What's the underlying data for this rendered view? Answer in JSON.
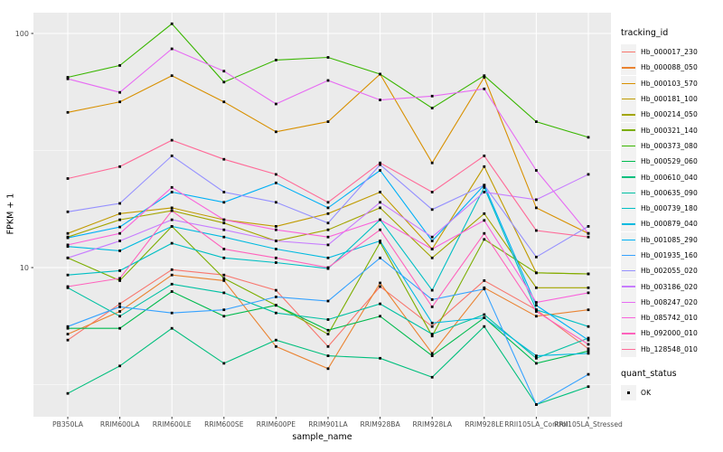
{
  "chart_data": {
    "type": "line",
    "title": "",
    "xlabel": "sample_name",
    "ylabel": "FPKM + 1",
    "y_scale": "log10",
    "ylim": [
      2.2,
      123
    ],
    "y_major_ticks": [
      10,
      100
    ],
    "y_minor_ticks": [
      3.162,
      31.62
    ],
    "grid": "on",
    "panel_bg": "#EBEBEB",
    "grid_color": "#FFFFFF",
    "point_marker": "black-square",
    "point_color": "#000000",
    "legend_position": "right",
    "legend_title": "tracking_id",
    "categories": [
      "PB350LA",
      "RRIM600LA",
      "RRIM600LE",
      "RRIM600SE",
      "RRIM600PE",
      "RRIM901LA",
      "RRIM928BA",
      "RRIM928LA",
      "RRIM928LE",
      "RRII105LA_Control",
      "RRII105LA_Stressed"
    ],
    "series": [
      {
        "name": "Hb_000017_230",
        "color": "#F8766D",
        "values": [
          4.9,
          7.0,
          9.8,
          9.3,
          8.0,
          4.6,
          8.3,
          5.6,
          8.8,
          6.6,
          4.5
        ]
      },
      {
        "name": "Hb_000088_050",
        "color": "#EA8331",
        "values": [
          5.2,
          6.5,
          9.3,
          8.8,
          4.6,
          3.7,
          8.6,
          4.3,
          8.2,
          6.2,
          6.6
        ]
      },
      {
        "name": "Hb_000103_570",
        "color": "#D89000",
        "values": [
          46,
          51,
          66,
          51,
          38,
          42,
          67,
          28,
          65,
          18,
          14
        ]
      },
      {
        "name": "Hb_000181_100",
        "color": "#C09B00",
        "values": [
          14,
          17,
          18,
          16,
          15,
          17,
          21,
          12,
          27,
          9.5,
          9.4
        ]
      },
      {
        "name": "Hb_000214_050",
        "color": "#A3A500",
        "values": [
          13.5,
          16,
          17.5,
          15.5,
          13,
          14.5,
          18,
          11,
          17,
          8.2,
          8.2
        ]
      },
      {
        "name": "Hb_000321_140",
        "color": "#7CAE00",
        "values": [
          11.0,
          8.8,
          15,
          9.0,
          6.9,
          5.2,
          12.8,
          5.1,
          13.2,
          9.5,
          9.4
        ]
      },
      {
        "name": "Hb_000373_080",
        "color": "#39B600",
        "values": [
          65,
          73,
          110,
          62,
          77,
          79,
          67,
          48,
          66,
          42,
          36
        ]
      },
      {
        "name": "Hb_000529_060",
        "color": "#00BB4E",
        "values": [
          5.5,
          5.5,
          7.9,
          6.2,
          6.9,
          5.4,
          6.2,
          4.2,
          6.1,
          3.9,
          4.4
        ]
      },
      {
        "name": "Hb_000610_040",
        "color": "#00BF7D",
        "values": [
          2.9,
          3.8,
          5.5,
          3.9,
          4.9,
          4.2,
          4.1,
          3.4,
          5.6,
          2.6,
          3.1
        ]
      },
      {
        "name": "Hb_000635_090",
        "color": "#00C1A3",
        "values": [
          8.2,
          6.2,
          8.5,
          7.8,
          6.4,
          6.0,
          7.0,
          5.2,
          6.3,
          4.1,
          5.0
        ]
      },
      {
        "name": "Hb_000739_180",
        "color": "#00BFC4",
        "values": [
          9.3,
          9.7,
          12.7,
          11,
          10.5,
          9.9,
          16,
          8.0,
          22,
          6.6,
          5.6
        ]
      },
      {
        "name": "Hb_000879_040",
        "color": "#00BAE0",
        "values": [
          12.3,
          11.8,
          15,
          13.5,
          12,
          11,
          13,
          5.8,
          6.1,
          4.2,
          4.3
        ]
      },
      {
        "name": "Hb_001085_290",
        "color": "#00B0F6",
        "values": [
          13.4,
          14.9,
          21,
          19,
          23,
          18,
          26,
          13,
          22.5,
          6.9,
          4.9
        ]
      },
      {
        "name": "Hb_001935_160",
        "color": "#35A2FF",
        "values": [
          5.6,
          6.8,
          6.4,
          6.6,
          7.5,
          7.2,
          11,
          7.3,
          8.1,
          2.6,
          3.5
        ]
      },
      {
        "name": "Hb_002055_020",
        "color": "#9590FF",
        "values": [
          17.3,
          18.8,
          30,
          21,
          19,
          15.5,
          27.5,
          17.7,
          22.5,
          11.1,
          15
        ]
      },
      {
        "name": "Hb_003186_020",
        "color": "#C77CFF",
        "values": [
          11,
          13,
          16,
          14.5,
          13,
          12.5,
          19,
          13.5,
          21,
          19.5,
          25
        ]
      },
      {
        "name": "Hb_008247_020",
        "color": "#E76BF3",
        "values": [
          64,
          56,
          86,
          69,
          50,
          63,
          52,
          54,
          58,
          26,
          14
        ]
      },
      {
        "name": "Hb_085742_010",
        "color": "#FA62DB",
        "values": [
          12.5,
          14,
          22,
          16,
          14.5,
          13.5,
          16,
          12,
          15.9,
          7.1,
          7.8
        ]
      },
      {
        "name": "Hb_092000_010",
        "color": "#FF62BC",
        "values": [
          8.3,
          9.0,
          17.5,
          12,
          11,
          10,
          14.5,
          6.8,
          14,
          6.5,
          4.7
        ]
      },
      {
        "name": "Hb_128548_010",
        "color": "#FF6A98",
        "values": [
          24,
          27,
          35,
          29,
          25,
          19,
          28,
          21,
          30,
          14.4,
          13.5
        ]
      }
    ],
    "legend2_title": "quant_status",
    "legend2_items": [
      {
        "label": "OK",
        "marker": "black-square"
      }
    ]
  }
}
